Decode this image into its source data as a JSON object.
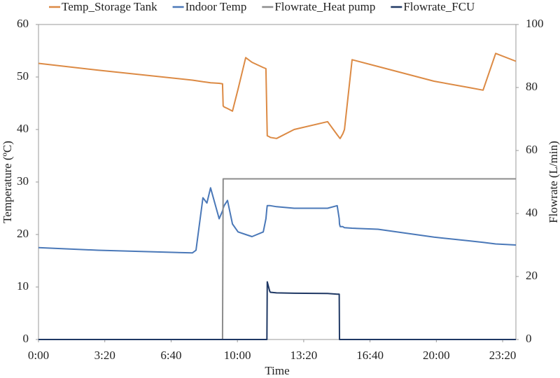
{
  "chart_data": {
    "type": "line",
    "x_label": "Time",
    "y_label": "Temperature (ºC)",
    "y2_label": "Flowrate (L/min)",
    "legend": "top",
    "xlim": [
      0,
      1440
    ],
    "xticks": [
      {
        "value": 0,
        "label": "0:00"
      },
      {
        "value": 200,
        "label": "3:20"
      },
      {
        "value": 400,
        "label": "6:40"
      },
      {
        "value": 600,
        "label": "10:00"
      },
      {
        "value": 800,
        "label": "13:20"
      },
      {
        "value": 1000,
        "label": "16:40"
      },
      {
        "value": 1200,
        "label": "20:00"
      },
      {
        "value": 1400,
        "label": "23:20"
      }
    ],
    "ylim": [
      0,
      60
    ],
    "yticks": [
      0,
      10,
      20,
      30,
      40,
      50,
      60
    ],
    "y2lim": [
      0,
      100
    ],
    "y2ticks": [
      0,
      20,
      40,
      60,
      80,
      100
    ],
    "x": [
      0,
      180,
      464,
      475,
      496,
      508,
      519,
      545,
      555,
      557,
      560,
      570,
      585,
      602,
      625,
      644,
      678,
      686,
      689,
      690,
      697,
      699,
      718,
      771,
      872,
      901,
      907,
      908,
      910,
      918,
      923,
      946,
      1024,
      1193,
      1298,
      1341,
      1379,
      1440
    ],
    "series": [
      {
        "name": "Temp_Storage Tank",
        "color": "#dc8a44",
        "values": [
          52.6,
          51.3,
          49.4,
          49.3,
          49.1,
          49.0,
          48.9,
          48.8,
          48.7,
          44.5,
          44.3,
          44.0,
          43.5,
          47.7,
          53.7,
          52.8,
          51.8,
          51.6,
          42,
          38.8,
          38.6,
          38.5,
          38.3,
          40,
          41.5,
          39,
          38.5,
          38.4,
          38.3,
          39.2,
          40,
          53.3,
          52,
          49.2,
          48,
          47.5,
          54.5,
          53
        ]
      },
      {
        "name": "Indoor Temp",
        "color": "#4a78b8",
        "values": [
          17.5,
          17,
          16.5,
          17,
          27,
          26,
          28.9,
          23,
          24.5,
          25,
          25.5,
          26.5,
          22,
          20.5,
          20,
          19.6,
          20.5,
          23,
          25,
          25.5,
          25.5,
          25.5,
          25.3,
          25,
          25,
          25.5,
          23,
          22,
          21.5,
          21.5,
          21.3,
          21.2,
          21,
          19.5,
          18.8,
          18.5,
          18.2,
          18
        ]
      },
      {
        "name": "Flowrate_Heat pump",
        "color": "#8c8c8c",
        "axis": "y2",
        "values": [
          0,
          0,
          0,
          0,
          0,
          0,
          0,
          0,
          0,
          51,
          51,
          51,
          51,
          51,
          51,
          51,
          51,
          51,
          51,
          51,
          51,
          51,
          51,
          51,
          51,
          51,
          51,
          51,
          51,
          51,
          51,
          51,
          51,
          51,
          51,
          51,
          51,
          51
        ]
      },
      {
        "name": "Flowrate_FCU",
        "color": "#1f3864",
        "axis": "y2",
        "values": [
          0,
          0,
          0,
          0,
          0,
          0,
          0,
          0,
          0,
          0,
          0,
          0,
          0,
          0,
          0,
          0,
          0,
          0,
          0,
          18.3,
          15.5,
          15,
          14.8,
          14.7,
          14.6,
          14.4,
          14.4,
          0,
          0,
          0,
          0,
          0,
          0,
          0,
          0,
          0,
          0,
          0
        ]
      }
    ]
  }
}
